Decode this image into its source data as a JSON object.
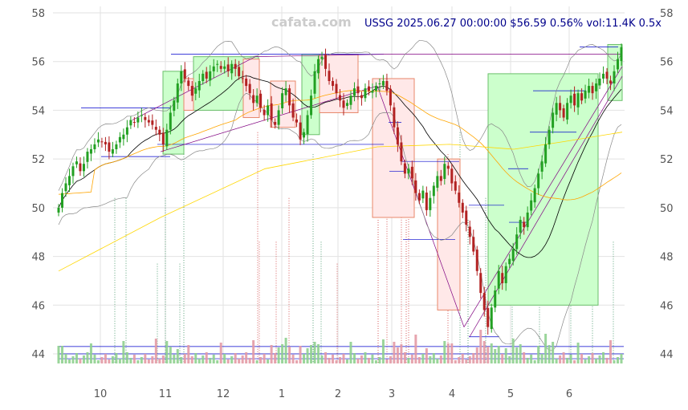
{
  "header": {
    "watermark": "cafata.com",
    "info": "USSG 2025.06.27 00:00:00 $56.59 0.56% vol:11.4K 0.5x"
  },
  "chart_data": {
    "type": "candlestick",
    "symbol": "USSG",
    "ylim": [
      43,
      58
    ],
    "yticks": [
      44,
      46,
      48,
      50,
      52,
      54,
      56,
      58
    ],
    "xticks": [
      "10",
      "11",
      "12",
      "1",
      "2",
      "3",
      "4",
      "5",
      "6"
    ],
    "grid": true,
    "last_close": 56.59,
    "change_pct": 0.56,
    "volume": "11.4K",
    "volume_ratio": "0.5x",
    "colors": {
      "up": "#22a022",
      "down": "#b22222",
      "ma_short": "#000000",
      "ma_mid": "#ffa500",
      "ma_long": "#ffd700",
      "bands": "#888888",
      "levels": "#0000cd",
      "trend": "#800080",
      "up_box_fill": "#ccffcc",
      "down_box_fill": "#ffe8e8"
    },
    "closes": [
      50.0,
      50.6,
      51.0,
      51.3,
      51.7,
      51.9,
      51.5,
      51.8,
      52.3,
      52.4,
      52.6,
      52.8,
      52.7,
      52.6,
      52.3,
      52.4,
      52.6,
      52.9,
      53.0,
      53.3,
      53.6,
      53.5,
      53.7,
      53.8,
      53.6,
      53.5,
      53.4,
      53.2,
      53.0,
      52.6,
      53.2,
      53.9,
      54.4,
      55.1,
      55.6,
      55.3,
      55.0,
      54.6,
      54.9,
      55.2,
      55.5,
      55.3,
      55.6,
      55.8,
      55.9,
      55.7,
      55.8,
      55.6,
      55.9,
      55.7,
      55.4,
      55.3,
      55.0,
      54.7,
      54.3,
      54.6,
      54.1,
      53.8,
      54.2,
      53.6,
      53.4,
      54.0,
      54.7,
      54.9,
      54.2,
      53.7,
      53.5,
      52.8,
      53.1,
      53.8,
      54.6,
      55.6,
      56.1,
      56.2,
      55.7,
      55.2,
      55.0,
      54.7,
      54.4,
      54.1,
      54.3,
      54.6,
      54.9,
      54.7,
      54.5,
      54.9,
      54.8,
      54.8,
      55.0,
      55.1,
      55.2,
      54.8,
      54.2,
      53.3,
      52.6,
      51.9,
      51.4,
      51.6,
      51.2,
      50.6,
      50.3,
      50.7,
      49.9,
      50.4,
      50.9,
      51.3,
      51.1,
      51.8,
      51.6,
      51.0,
      50.7,
      50.2,
      49.8,
      49.3,
      48.8,
      48.2,
      47.4,
      46.5,
      45.8,
      45.1,
      45.9,
      46.6,
      47.4,
      46.9,
      47.6,
      47.9,
      48.3,
      48.9,
      49.5,
      49.2,
      49.8,
      50.3,
      50.8,
      51.4,
      51.9,
      52.6,
      53.2,
      53.9,
      54.3,
      54.0,
      53.7,
      54.3,
      54.6,
      54.2,
      54.7,
      54.4,
      54.8,
      55.0,
      54.7,
      55.1,
      55.3,
      55.5,
      55.3,
      55.1,
      55.6,
      56.1,
      56.59
    ]
  }
}
